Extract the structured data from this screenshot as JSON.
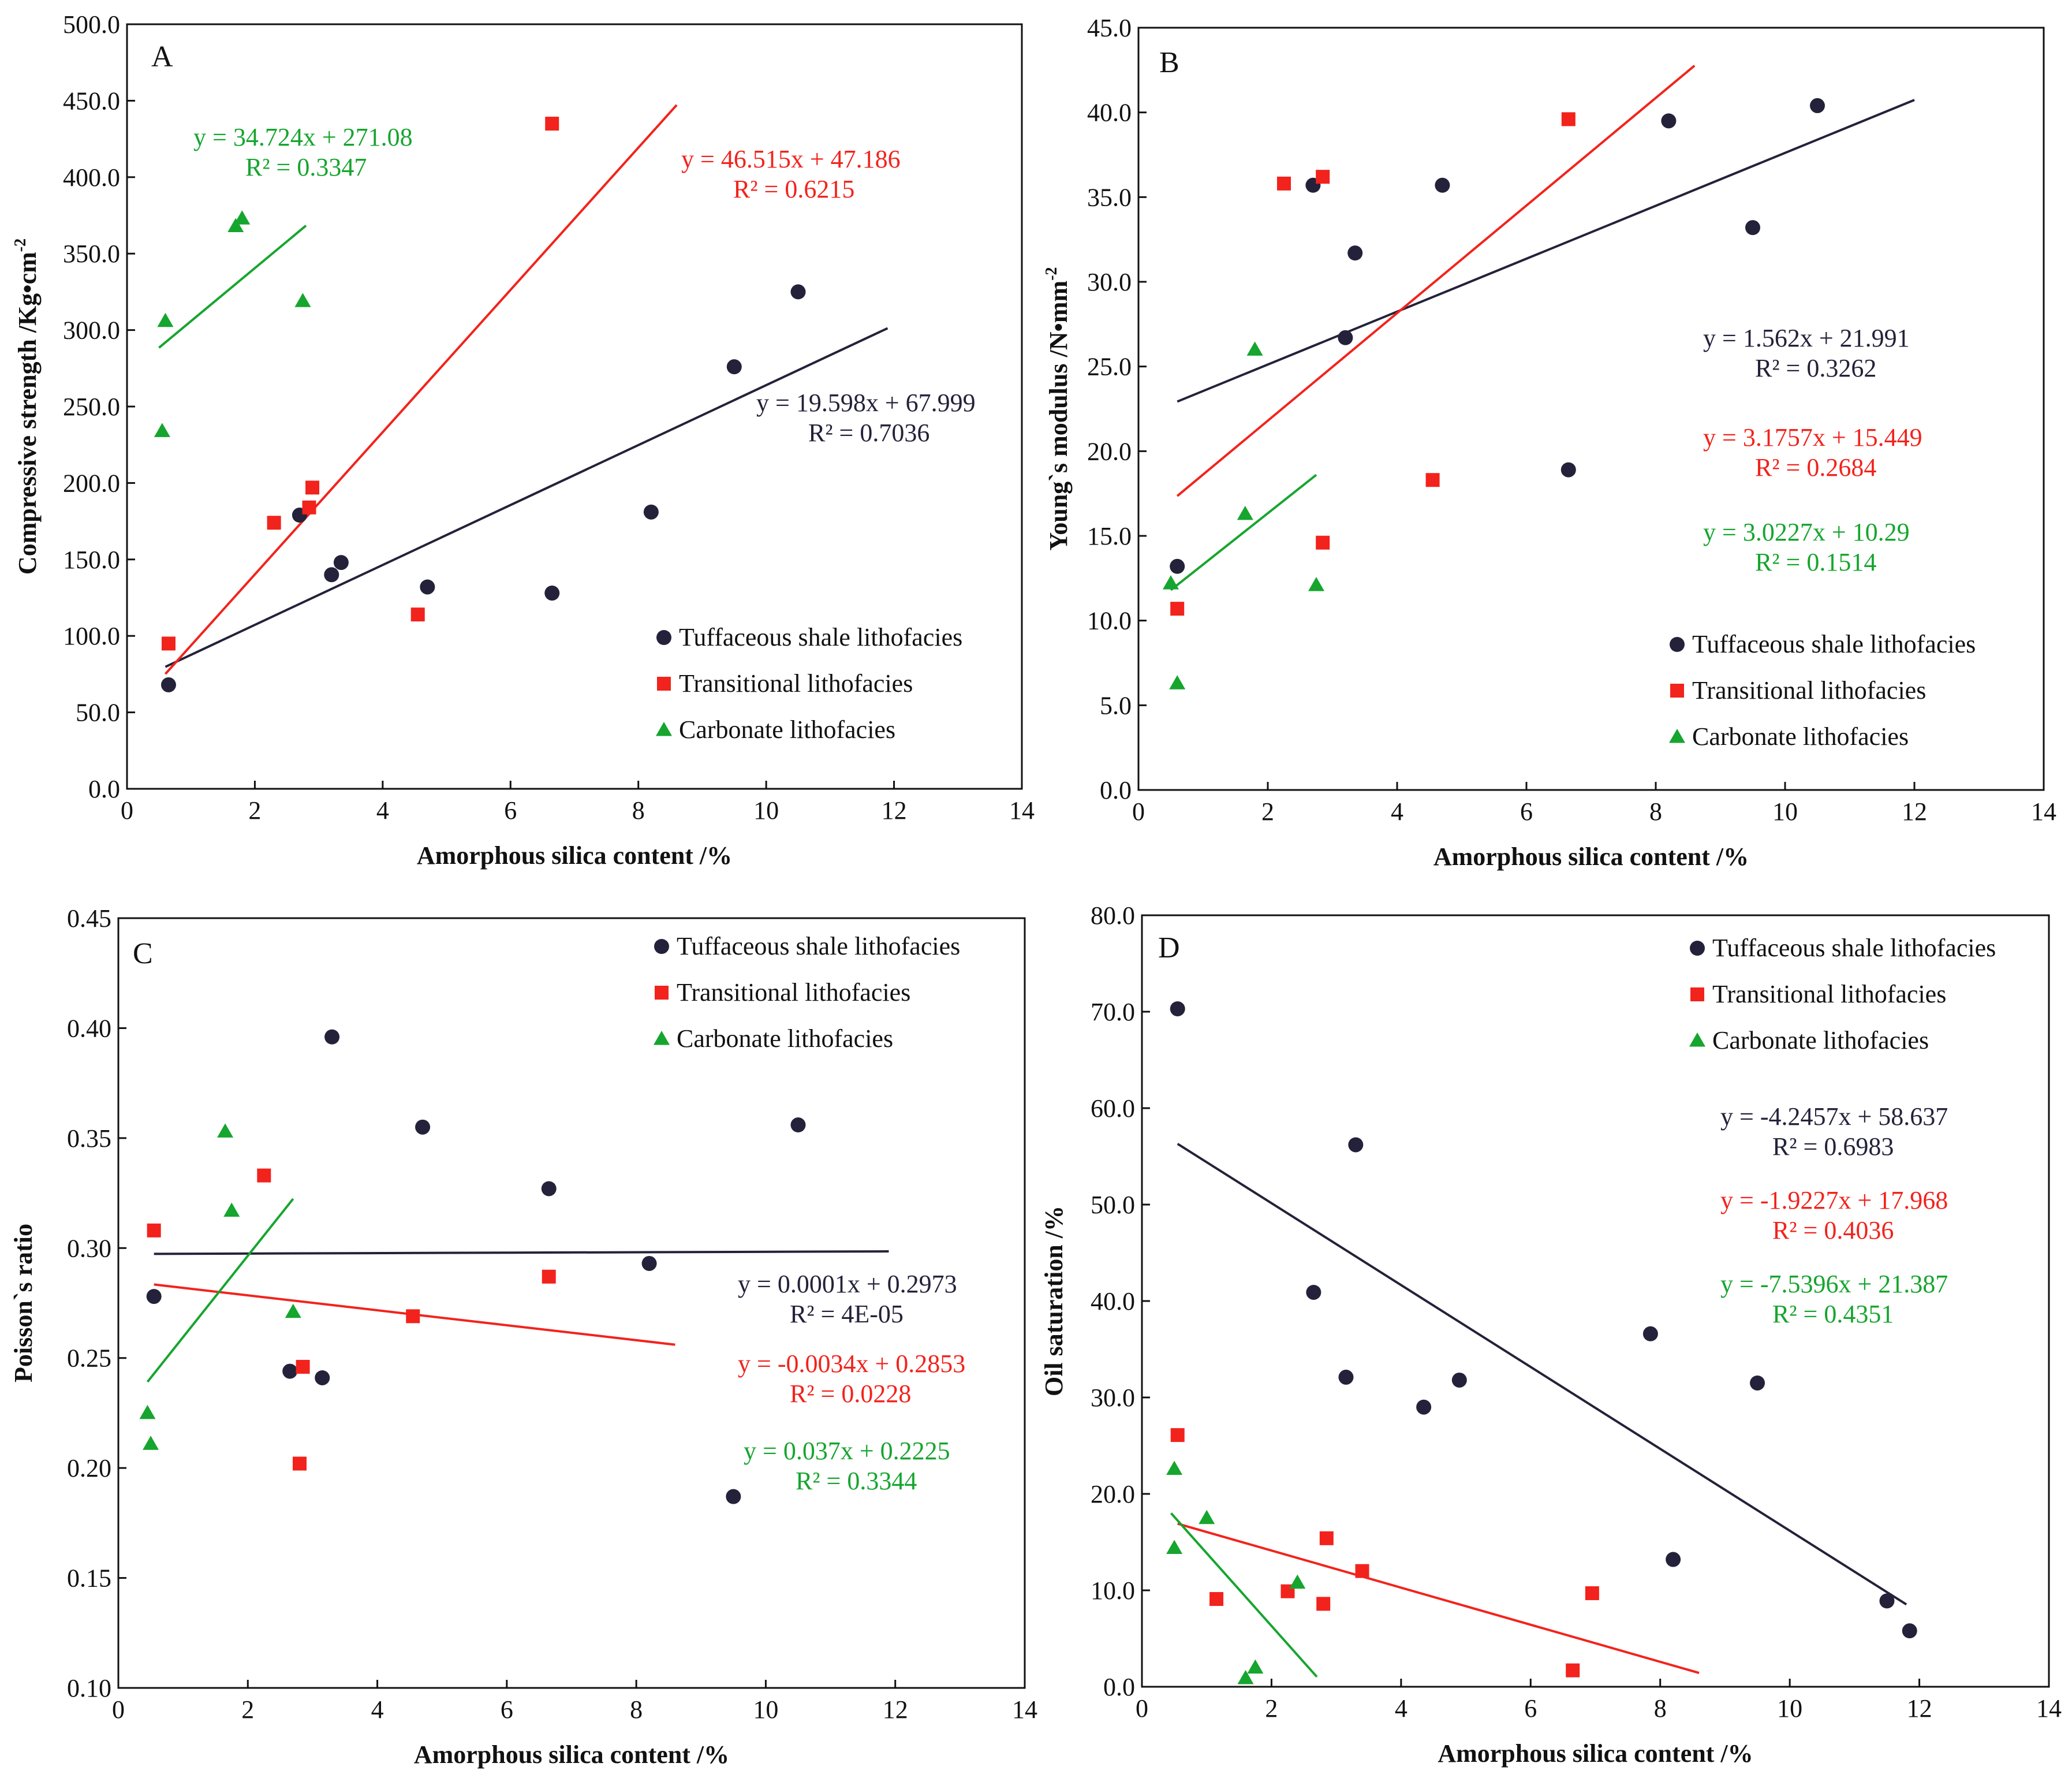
{
  "colors": {
    "tuff": "#24223a",
    "trans": "#f2231c",
    "carb": "#16a52e",
    "axis": "#111111"
  },
  "legend": {
    "tuff": "Tuffaceous shale lithofacies",
    "trans": "Transitional lithofacies",
    "carb": "Carbonate lithofacies"
  },
  "chart_data": [
    {
      "type": "scatter",
      "panel": "A",
      "xlabel": "Amorphous silica content /%",
      "ylabel": "Compressive strength /Kg•cm",
      "ylabel_sup": "-2",
      "xlim": [
        0,
        14
      ],
      "ylim": [
        0,
        500
      ],
      "xticks": [
        "0",
        "2",
        "4",
        "6",
        "8",
        "10",
        "12",
        "14"
      ],
      "yticks": [
        "0.0",
        "50.0",
        "100.0",
        "150.0",
        "200.0",
        "250.0",
        "300.0",
        "350.0",
        "400.0",
        "450.0",
        "500.0"
      ],
      "legend_position": "bottom-right",
      "series": [
        {
          "name": "Tuffaceous shale lithofacies",
          "key": "tuff",
          "points": [
            [
              0.65,
              68
            ],
            [
              2.7,
              179
            ],
            [
              3.2,
              140
            ],
            [
              3.35,
              148
            ],
            [
              4.7,
              132
            ],
            [
              6.65,
              128
            ],
            [
              8.2,
              181
            ],
            [
              9.5,
              276
            ],
            [
              10.5,
              325
            ]
          ],
          "fit": {
            "x": [
              0.6,
              11.9
            ],
            "slope": 19.598,
            "intercept": 67.999
          }
        },
        {
          "name": "Transitional lithofacies",
          "key": "trans",
          "points": [
            [
              0.65,
              95
            ],
            [
              2.3,
              174
            ],
            [
              2.85,
              184
            ],
            [
              2.9,
              197
            ],
            [
              4.55,
              114
            ],
            [
              6.65,
              435
            ]
          ],
          "fit": {
            "x": [
              0.6,
              8.6
            ],
            "slope": 46.515,
            "intercept": 47.186
          }
        },
        {
          "name": "Carbonate lithofacies",
          "key": "carb",
          "points": [
            [
              0.55,
              234
            ],
            [
              0.6,
              306
            ],
            [
              1.7,
              368
            ],
            [
              1.8,
              373
            ],
            [
              2.75,
              319
            ]
          ],
          "fit": {
            "x": [
              0.5,
              2.8
            ],
            "slope": 34.724,
            "intercept": 271.08
          }
        }
      ],
      "equations": [
        {
          "key": "carb",
          "eq": "y = 34.724x + 271.08",
          "r2": "R² = 0.3347"
        },
        {
          "key": "trans",
          "eq": "y = 46.515x + 47.186",
          "r2": "R² = 0.6215"
        },
        {
          "key": "tuff",
          "eq": "y = 19.598x + 67.999",
          "r2": "R² = 0.7036"
        }
      ]
    },
    {
      "type": "scatter",
      "panel": "B",
      "xlabel": "Amorphous silica content /%",
      "ylabel": "Young`s modulus /N•mm",
      "ylabel_sup": "-2",
      "xlim": [
        0,
        14
      ],
      "ylim": [
        0,
        45
      ],
      "xticks": [
        "0",
        "2",
        "4",
        "6",
        "8",
        "10",
        "12",
        "14"
      ],
      "yticks": [
        "0.0",
        "5.0",
        "10.0",
        "15.0",
        "20.0",
        "25.0",
        "30.0",
        "35.0",
        "40.0",
        "45.0"
      ],
      "legend_position": "bottom-right",
      "series": [
        {
          "name": "Tuffaceous shale lithofacies",
          "key": "tuff",
          "points": [
            [
              0.6,
              13.2
            ],
            [
              2.7,
              35.7
            ],
            [
              3.2,
              26.7
            ],
            [
              3.35,
              31.7
            ],
            [
              4.7,
              35.7
            ],
            [
              6.65,
              18.9
            ],
            [
              8.2,
              39.5
            ],
            [
              9.5,
              33.2
            ],
            [
              10.5,
              40.4
            ]
          ],
          "fit": {
            "x": [
              0.6,
              12.0
            ],
            "slope": 1.562,
            "intercept": 21.991
          }
        },
        {
          "name": "Transitional lithofacies",
          "key": "trans",
          "points": [
            [
              0.6,
              10.7
            ],
            [
              2.25,
              35.8
            ],
            [
              2.85,
              36.2
            ],
            [
              2.85,
              14.6
            ],
            [
              4.55,
              18.3
            ],
            [
              6.65,
              39.6
            ]
          ],
          "fit": {
            "x": [
              0.6,
              8.6
            ],
            "slope": 3.1757,
            "intercept": 15.449
          }
        },
        {
          "name": "Carbonate lithofacies",
          "key": "carb",
          "points": [
            [
              0.5,
              12.2
            ],
            [
              0.6,
              6.3
            ],
            [
              1.65,
              16.3
            ],
            [
              1.8,
              26.0
            ],
            [
              2.75,
              12.1
            ]
          ],
          "fit": {
            "x": [
              0.5,
              2.75
            ],
            "slope": 3.0227,
            "intercept": 10.29
          }
        }
      ],
      "equations": [
        {
          "key": "tuff",
          "eq": "y = 1.562x + 21.991",
          "r2": "R² = 0.3262"
        },
        {
          "key": "trans",
          "eq": "y = 3.1757x + 15.449",
          "r2": "R² = 0.2684"
        },
        {
          "key": "carb",
          "eq": "y = 3.0227x + 10.29",
          "r2": "R² = 0.1514"
        }
      ]
    },
    {
      "type": "scatter",
      "panel": "C",
      "xlabel": "Amorphous silica content /%",
      "ylabel": "Poisson`s ratio",
      "ylabel_sup": "",
      "xlim": [
        0,
        14
      ],
      "ylim": [
        0.1,
        0.45
      ],
      "xticks": [
        "0",
        "2",
        "4",
        "6",
        "8",
        "10",
        "12",
        "14"
      ],
      "yticks": [
        "0.10",
        "0.15",
        "0.20",
        "0.25",
        "0.30",
        "0.35",
        "0.40",
        "0.45"
      ],
      "legend_position": "top-right",
      "series": [
        {
          "name": "Tuffaceous shale lithofacies",
          "key": "tuff",
          "points": [
            [
              0.55,
              0.278
            ],
            [
              2.65,
              0.244
            ],
            [
              3.15,
              0.241
            ],
            [
              3.3,
              0.396
            ],
            [
              4.7,
              0.355
            ],
            [
              6.65,
              0.327
            ],
            [
              8.2,
              0.293
            ],
            [
              9.5,
              0.187
            ],
            [
              10.5,
              0.356
            ]
          ],
          "fit": {
            "x": [
              0.55,
              11.9
            ],
            "slope": 0.0001,
            "intercept": 0.2973
          }
        },
        {
          "name": "Transitional lithofacies",
          "key": "trans",
          "points": [
            [
              0.55,
              0.308
            ],
            [
              2.25,
              0.333
            ],
            [
              2.85,
              0.246
            ],
            [
              2.8,
              0.202
            ],
            [
              4.55,
              0.269
            ],
            [
              6.65,
              0.287
            ]
          ],
          "fit": {
            "x": [
              0.55,
              8.6
            ],
            "slope": -0.0034,
            "intercept": 0.2853
          }
        },
        {
          "name": "Carbonate lithofacies",
          "key": "carb",
          "points": [
            [
              0.45,
              0.225
            ],
            [
              0.5,
              0.211
            ],
            [
              1.65,
              0.353
            ],
            [
              1.75,
              0.317
            ],
            [
              2.7,
              0.271
            ]
          ],
          "fit": {
            "x": [
              0.45,
              2.7
            ],
            "slope": 0.037,
            "intercept": 0.2225
          }
        }
      ],
      "equations": [
        {
          "key": "tuff",
          "eq": "y = 0.0001x + 0.2973",
          "r2": "R² = 4E-05"
        },
        {
          "key": "trans",
          "eq": "y = -0.0034x + 0.2853",
          "r2": "R² = 0.0228"
        },
        {
          "key": "carb",
          "eq": "y = 0.037x + 0.2225",
          "r2": "R² = 0.3344"
        }
      ]
    },
    {
      "type": "scatter",
      "panel": "D",
      "xlabel": "Amorphous silica content /%",
      "ylabel": "Oil saturation /%",
      "ylabel_sup": "",
      "xlim": [
        0,
        14
      ],
      "ylim": [
        0,
        80
      ],
      "xticks": [
        "0",
        "2",
        "4",
        "6",
        "8",
        "10",
        "12",
        "14"
      ],
      "yticks": [
        "0.0",
        "10.0",
        "20.0",
        "30.0",
        "40.0",
        "50.0",
        "60.0",
        "70.0",
        "80.0"
      ],
      "legend_position": "top-right",
      "series": [
        {
          "name": "Tuffaceous shale lithofacies",
          "key": "tuff",
          "points": [
            [
              0.55,
              70.3
            ],
            [
              2.65,
              40.9
            ],
            [
              3.15,
              32.1
            ],
            [
              3.3,
              56.2
            ],
            [
              4.35,
              29.0
            ],
            [
              4.9,
              31.8
            ],
            [
              7.85,
              36.6
            ],
            [
              8.2,
              13.2
            ],
            [
              9.5,
              31.5
            ],
            [
              11.5,
              8.9
            ],
            [
              11.85,
              5.8
            ]
          ],
          "fit": {
            "x": [
              0.55,
              11.8
            ],
            "slope": -4.2457,
            "intercept": 58.637
          }
        },
        {
          "name": "Transitional lithofacies",
          "key": "trans",
          "points": [
            [
              0.55,
              26.1
            ],
            [
              1.15,
              9.1
            ],
            [
              2.25,
              9.9
            ],
            [
              2.8,
              8.6
            ],
            [
              2.85,
              15.4
            ],
            [
              3.4,
              12.0
            ],
            [
              6.65,
              1.7
            ],
            [
              6.95,
              9.7
            ]
          ],
          "fit": {
            "x": [
              0.55,
              8.6
            ],
            "slope": -1.9227,
            "intercept": 17.968
          }
        },
        {
          "name": "Carbonate lithofacies",
          "key": "carb",
          "points": [
            [
              0.5,
              22.6
            ],
            [
              0.5,
              14.4
            ],
            [
              1.0,
              17.5
            ],
            [
              1.6,
              0.9
            ],
            [
              1.75,
              2.0
            ],
            [
              2.4,
              10.8
            ]
          ],
          "fit": {
            "x": [
              0.45,
              2.7
            ],
            "slope": -7.5396,
            "intercept": 21.387
          }
        }
      ],
      "equations": [
        {
          "key": "tuff",
          "eq": "y = -4.2457x + 58.637",
          "r2": "R² = 0.6983"
        },
        {
          "key": "trans",
          "eq": "y = -1.9227x + 17.968",
          "r2": "R² = 0.4036"
        },
        {
          "key": "carb",
          "eq": "y = -7.5396x + 21.387",
          "r2": "R² = 0.4351"
        }
      ]
    }
  ]
}
